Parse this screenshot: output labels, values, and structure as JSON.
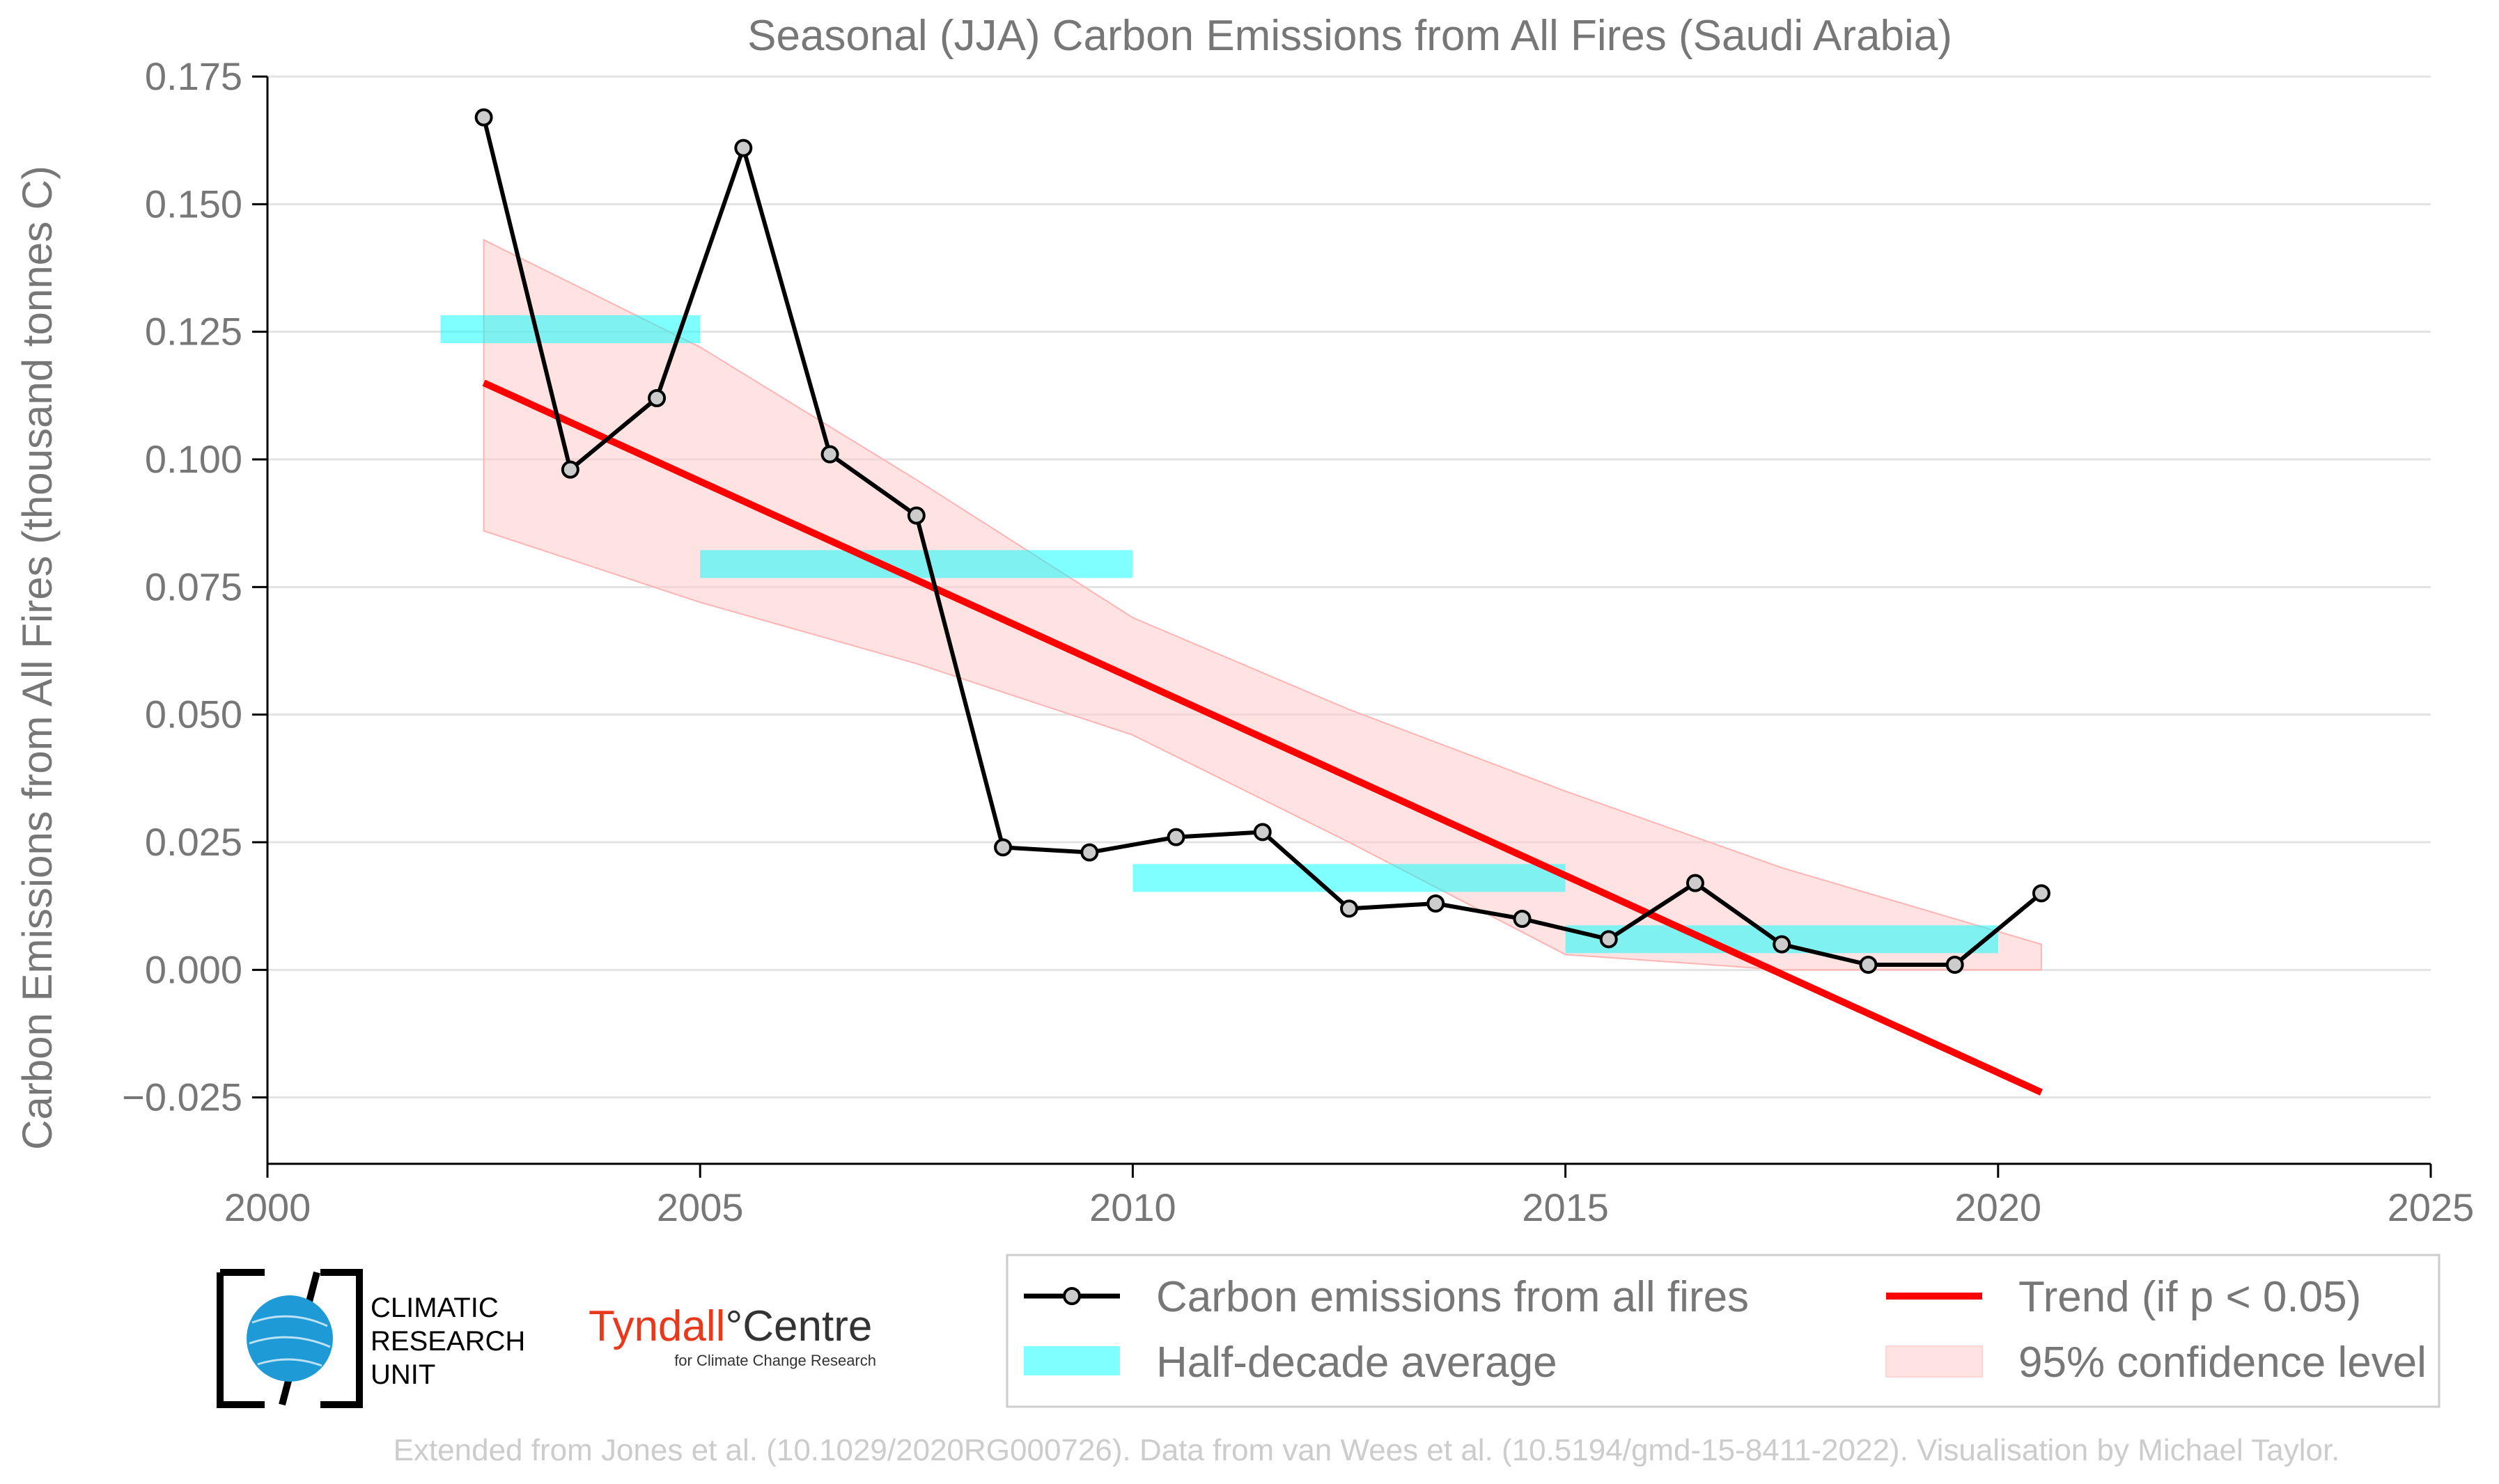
{
  "chart_data": {
    "type": "line",
    "title": "Seasonal (JJA) Carbon Emissions from All Fires (Saudi Arabia)",
    "xlabel": "",
    "ylabel": "Carbon Emissions from All Fires (thousand tonnes C)",
    "xlim": [
      2000,
      2025
    ],
    "ylim": [
      -0.038,
      0.175
    ],
    "xticks": [
      "2000",
      "2005",
      "2010",
      "2015",
      "2020",
      "2025"
    ],
    "xtick_values": [
      2000,
      2005,
      2010,
      2015,
      2020,
      2025
    ],
    "yticks": [
      "0.175",
      "0.150",
      "0.125",
      "0.100",
      "0.075",
      "0.050",
      "0.025",
      "0.000",
      "−0.025"
    ],
    "ytick_values": [
      0.175,
      0.15,
      0.125,
      0.1,
      0.075,
      0.05,
      0.025,
      0.0,
      -0.025
    ],
    "grid": "horizontal",
    "legend_position": "bottom-right",
    "series": [
      {
        "name": "Carbon emissions from all fires",
        "color": "#000000",
        "marker": "circle",
        "x": [
          2002.5,
          2003.5,
          2004.5,
          2005.5,
          2006.5,
          2007.5,
          2008.5,
          2009.5,
          2010.5,
          2011.5,
          2012.5,
          2013.5,
          2014.5,
          2015.5,
          2016.5,
          2017.5,
          2018.5,
          2019.5,
          2020.5
        ],
        "values": [
          0.167,
          0.098,
          0.112,
          0.161,
          0.101,
          0.089,
          0.024,
          0.023,
          0.026,
          0.027,
          0.012,
          0.013,
          0.01,
          0.006,
          0.017,
          0.005,
          0.001,
          0.001,
          0.015
        ]
      },
      {
        "name": "Half-decade average",
        "color": "#00ffff",
        "type": "segments",
        "segments": [
          {
            "x0": 2002,
            "x1": 2005,
            "y": 0.1255
          },
          {
            "x0": 2005,
            "x1": 2010,
            "y": 0.0795
          },
          {
            "x0": 2010,
            "x1": 2015,
            "y": 0.018
          },
          {
            "x0": 2015,
            "x1": 2020,
            "y": 0.006
          }
        ]
      },
      {
        "name": "Trend (if p < 0.05)",
        "color": "#ff0000",
        "x": [
          2002.5,
          2020.5
        ],
        "values": [
          0.115,
          -0.024
        ]
      },
      {
        "name": "95% confidence level",
        "color": "#ffb3b3",
        "type": "band",
        "x": [
          2002.5,
          2005,
          2007.5,
          2010,
          2012.5,
          2015,
          2017.5,
          2020.5
        ],
        "upper": [
          0.143,
          0.122,
          0.096,
          0.069,
          0.051,
          0.035,
          0.02,
          0.005
        ],
        "lower": [
          0.086,
          0.072,
          0.06,
          0.046,
          0.025,
          0.003,
          0.0,
          0.0
        ]
      }
    ]
  },
  "logos": {
    "cru_lines": [
      "CLIMATIC",
      "RESEARCH",
      "UNIT"
    ],
    "tyndall_main_a": "Tyndall",
    "tyndall_main_b": "°Centre",
    "tyndall_sub": "for Climate Change Research"
  },
  "credit": "Extended from Jones et al. (10.1029/2020RG000726). Data from van Wees et al. (10.5194/gmd-15-8411-2022). Visualisation by Michael Taylor."
}
